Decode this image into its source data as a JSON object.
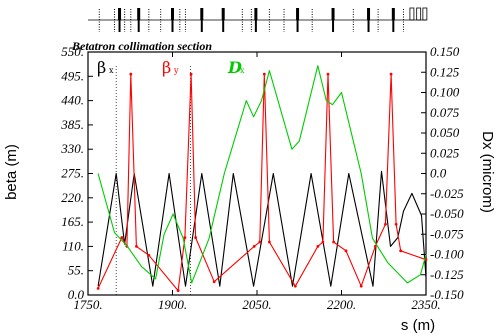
{
  "chart_data": {
    "type": "line",
    "section_title": "Betatron collimation section",
    "xlabel": "s (m)",
    "ylabel_left": "beta (m)",
    "ylabel_right": "Dx (microm)",
    "xlim": [
      1750,
      2350
    ],
    "ylim_left": [
      0,
      550
    ],
    "ylim_right": [
      -0.15,
      0.15
    ],
    "x_ticks": [
      "1750.",
      "1900.",
      "2050.",
      "2200.",
      "2350."
    ],
    "x_tick_values": [
      1750,
      1900,
      2050,
      2200,
      2350
    ],
    "left_ticks": [
      "0.0",
      "55.",
      "110.",
      "165.",
      "220.",
      "275.",
      "330.",
      "385.",
      "440.",
      "495.",
      "550."
    ],
    "left_tick_values": [
      0,
      55,
      110,
      165,
      220,
      275,
      330,
      385,
      440,
      495,
      550
    ],
    "right_ticks": [
      "-0.150",
      "-0.125",
      "-0.100",
      "-0.075",
      "-0.050",
      "-0.025",
      "0.0",
      "0.025",
      "0.050",
      "0.075",
      "0.100",
      "0.125",
      "0.150"
    ],
    "right_tick_values": [
      -0.15,
      -0.125,
      -0.1,
      -0.075,
      -0.05,
      -0.025,
      0,
      0.025,
      0.05,
      0.075,
      0.1,
      0.125,
      0.15
    ],
    "legend": [
      {
        "symbol": "β",
        "sub": "x",
        "color": "#000000"
      },
      {
        "symbol": "β",
        "sub": "y",
        "color": "#ff0000"
      },
      {
        "symbol": "D",
        "sub": "x",
        "color": "#00cc00"
      }
    ],
    "series": [
      {
        "key": "beta_x",
        "axis": "left",
        "color": "#000000",
        "x": [
          1768,
          1800,
          1815,
          1832,
          1865,
          1894,
          1923,
          1952,
          1984,
          2008,
          2044,
          2079,
          2113,
          2146,
          2181,
          2213,
          2256,
          2271,
          2287,
          2300,
          2310,
          2325,
          2342,
          2350
        ],
        "y": [
          20,
          275,
          115,
          275,
          20,
          275,
          20,
          275,
          20,
          275,
          20,
          275,
          20,
          275,
          20,
          275,
          20,
          280,
          110,
          130,
          190,
          230,
          180,
          40
        ]
      },
      {
        "key": "beta_y",
        "axis": "left",
        "color": "#ff0000",
        "x": [
          1768,
          1810,
          1819,
          1826,
          1836,
          1858,
          1910,
          1922,
          1933,
          1941,
          1974,
          2045,
          2055,
          2063,
          2072,
          2118,
          2158,
          2167,
          2176,
          2186,
          2208,
          2235,
          2260,
          2278,
          2288,
          2297,
          2305,
          2350
        ],
        "y": [
          15,
          130,
          110,
          500,
          110,
          90,
          10,
          130,
          500,
          130,
          30,
          110,
          120,
          500,
          120,
          20,
          110,
          120,
          500,
          120,
          100,
          20,
          110,
          160,
          500,
          160,
          100,
          80
        ]
      },
      {
        "key": "Dx",
        "axis": "right",
        "color": "#00cc00",
        "x": [
          1768,
          1797,
          1820,
          1845,
          1870,
          1885,
          1901,
          1919,
          1934,
          1965,
          1992,
          2031,
          2044,
          2058,
          2072,
          2112,
          2125,
          2158,
          2173,
          2184,
          2200,
          2235,
          2255,
          2282,
          2317,
          2340,
          2350
        ],
        "y": [
          -0.0,
          -0.073,
          -0.09,
          -0.115,
          -0.13,
          -0.075,
          -0.05,
          -0.08,
          -0.135,
          -0.08,
          0.0,
          0.09,
          0.07,
          0.09,
          0.127,
          0.03,
          0.04,
          0.133,
          0.09,
          0.085,
          0.1,
          0.0,
          -0.08,
          -0.11,
          -0.135,
          -0.125,
          -0.1
        ]
      }
    ],
    "vertical_markers_x": [
      1800,
      1932
    ],
    "lattice_elements": [
      {
        "x": 1770,
        "kind": "thin"
      },
      {
        "x": 1797,
        "kind": "thin"
      },
      {
        "x": 1806,
        "kind": "wide"
      },
      {
        "x": 1815,
        "kind": "thin"
      },
      {
        "x": 1826,
        "kind": "thin"
      },
      {
        "x": 1840,
        "kind": "wide"
      },
      {
        "x": 1858,
        "kind": "thin"
      },
      {
        "x": 1879,
        "kind": "thin"
      },
      {
        "x": 1900,
        "kind": "wide"
      },
      {
        "x": 1913,
        "kind": "thin"
      },
      {
        "x": 1923,
        "kind": "thin"
      },
      {
        "x": 1952,
        "kind": "wide"
      },
      {
        "x": 1990,
        "kind": "wide"
      },
      {
        "x": 2024,
        "kind": "thin"
      },
      {
        "x": 2040,
        "kind": "thin"
      },
      {
        "x": 2048,
        "kind": "wide"
      },
      {
        "x": 2072,
        "kind": "thin"
      },
      {
        "x": 2098,
        "kind": "thin"
      },
      {
        "x": 2122,
        "kind": "wide"
      },
      {
        "x": 2148,
        "kind": "thin"
      },
      {
        "x": 2185,
        "kind": "wide"
      },
      {
        "x": 2221,
        "kind": "thin"
      },
      {
        "x": 2248,
        "kind": "wide"
      },
      {
        "x": 2265,
        "kind": "thin"
      },
      {
        "x": 2292,
        "kind": "wide"
      },
      {
        "x": 2310,
        "kind": "thin"
      },
      {
        "x": 2325,
        "kind": "box"
      },
      {
        "x": 2337,
        "kind": "box"
      },
      {
        "x": 2348,
        "kind": "box"
      }
    ]
  }
}
